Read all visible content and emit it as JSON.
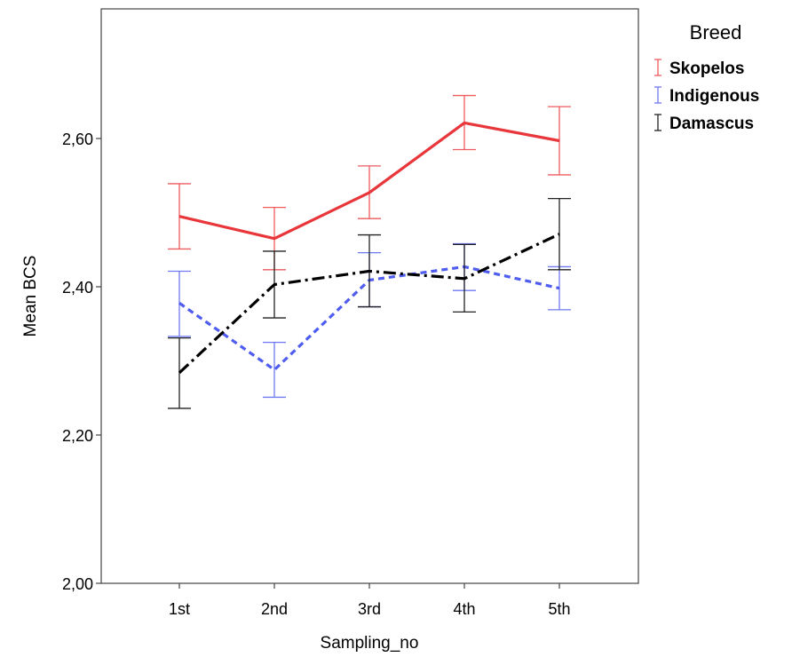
{
  "chart_data": {
    "type": "line",
    "xlabel": "Sampling_no",
    "ylabel": "Mean BCS",
    "categories": [
      "1st",
      "2nd",
      "3rd",
      "4th",
      "5th"
    ],
    "ylim": [
      2.0,
      2.8
    ],
    "yticks": [
      2.0,
      2.2,
      2.4,
      2.6
    ],
    "ytick_labels": [
      "2,00",
      "2,20",
      "2,40",
      "2,60"
    ],
    "grid": false,
    "legend": {
      "title": "Breed",
      "position": "right-outside-top"
    },
    "series": [
      {
        "name": "Skopelos",
        "color": "#e8363b",
        "errorbar_color": "#ee5a5e",
        "line_style": "solid",
        "values": [
          2.495,
          2.465,
          2.527,
          2.621,
          2.597
        ],
        "error_low": [
          2.451,
          2.423,
          2.492,
          2.585,
          2.551
        ],
        "error_high": [
          2.539,
          2.507,
          2.563,
          2.658,
          2.643
        ]
      },
      {
        "name": "Indigenous",
        "color": "#4e5cf0",
        "errorbar_color": "#6f79f2",
        "line_style": "dashed",
        "values": [
          2.378,
          2.288,
          2.409,
          2.427,
          2.398
        ],
        "error_low": [
          2.333,
          2.251,
          2.373,
          2.395,
          2.369
        ],
        "error_high": [
          2.421,
          2.325,
          2.446,
          2.458,
          2.427
        ]
      },
      {
        "name": "Damascus",
        "color": "#000000",
        "errorbar_color": "#222222",
        "line_style": "dashdot",
        "values": [
          2.284,
          2.403,
          2.421,
          2.411,
          2.471
        ],
        "error_low": [
          2.236,
          2.358,
          2.373,
          2.366,
          2.423
        ],
        "error_high": [
          2.331,
          2.448,
          2.47,
          2.457,
          2.519
        ]
      }
    ]
  }
}
